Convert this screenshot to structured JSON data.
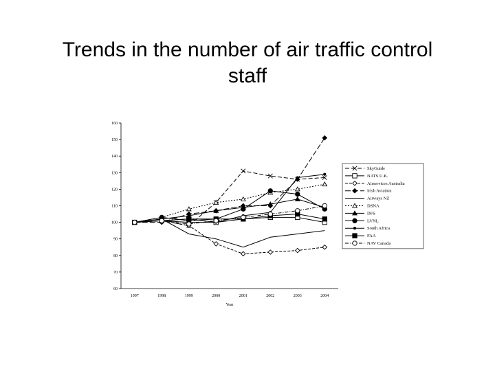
{
  "chart_data": {
    "type": "line",
    "title": "Trends in the number of air traffic control staff",
    "x_label": "Year",
    "categories": [
      "1997",
      "1998",
      "1999",
      "2000",
      "2001",
      "2002",
      "2003",
      "2004"
    ],
    "ylim": [
      60,
      160
    ],
    "yticks": [
      60,
      70,
      80,
      90,
      100,
      110,
      120,
      130,
      140,
      150,
      160
    ],
    "grid": false,
    "legend": "right",
    "series": [
      {
        "name": "SkyGuide",
        "color": "#000000",
        "marker": "x",
        "dash": "6,3",
        "values": [
          100,
          101,
          98,
          112,
          131,
          128,
          126,
          127
        ]
      },
      {
        "name": "NATS U.K.",
        "color": "#000000",
        "marker": "square-open",
        "dash": "",
        "values": [
          100,
          101,
          102,
          100,
          102,
          103,
          103,
          100
        ]
      },
      {
        "name": "Airservices Australia",
        "color": "#000000",
        "marker": "diamond-open",
        "dash": "4,2",
        "values": [
          100,
          101,
          98,
          87,
          81,
          82,
          83,
          85
        ]
      },
      {
        "name": "Irish Aviation",
        "color": "#000000",
        "marker": "diamond",
        "dash": "8,3",
        "values": [
          100,
          100,
          105,
          107,
          110,
          110,
          126,
          151
        ]
      },
      {
        "name": "Airways NZ",
        "color": "#000000",
        "marker": "none",
        "dash": "",
        "values": [
          100,
          102,
          93,
          90,
          85,
          91,
          93,
          95
        ]
      },
      {
        "name": "DSNA",
        "color": "#000000",
        "marker": "triangle-open",
        "dash": "2,2",
        "values": [
          100,
          103,
          108,
          112,
          114,
          118,
          120,
          123
        ]
      },
      {
        "name": "DFS",
        "color": "#000000",
        "marker": "triangle",
        "dash": "",
        "values": [
          100,
          102,
          104,
          107,
          109,
          111,
          114,
          109
        ]
      },
      {
        "name": "LVNL",
        "color": "#000000",
        "marker": "circle",
        "dash": "",
        "values": [
          100,
          103,
          101,
          102,
          108,
          119,
          117,
          108
        ]
      },
      {
        "name": "South Africa",
        "color": "#000000",
        "marker": "dot",
        "dash": "",
        "values": [
          100,
          101,
          100,
          100,
          104,
          106,
          127,
          129
        ]
      },
      {
        "name": "FAA",
        "color": "#000000",
        "marker": "square",
        "dash": "",
        "values": [
          100,
          101,
          102,
          102,
          102,
          104,
          105,
          102
        ]
      },
      {
        "name": "NAV Canada",
        "color": "#000000",
        "marker": "circle-open",
        "dash": "5,2,1,2",
        "values": [
          100,
          101,
          99,
          101,
          103,
          105,
          107,
          110
        ]
      }
    ]
  }
}
